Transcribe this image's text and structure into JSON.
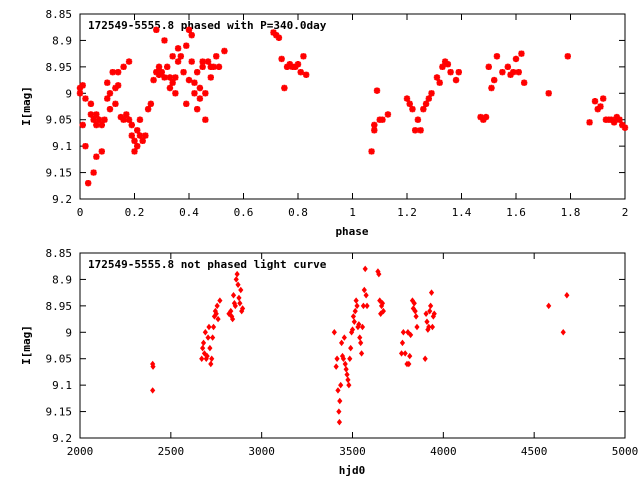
{
  "chart_data": [
    {
      "type": "scatter",
      "title": "172549-5555.8 phased with P=340.0day",
      "xlabel": "phase",
      "ylabel": "I[mag]",
      "xlim": [
        0,
        2
      ],
      "ylim": [
        9.2,
        8.85
      ],
      "y_inverted": true,
      "x_ticks": [
        "0",
        "0.2",
        "0.4",
        "0.6",
        "0.8",
        "1",
        "1.2",
        "1.4",
        "1.6",
        "1.8",
        "2"
      ],
      "y_ticks": [
        "8.85",
        "8.9",
        "8.95",
        "9",
        "9.05",
        "9.1",
        "9.15",
        "9.2"
      ],
      "marker_color": "#ff0000",
      "marker": "star",
      "series": [
        {
          "points": [
            [
              0.0,
              8.99
            ],
            [
              0.0,
              9.0
            ],
            [
              0.01,
              8.985
            ],
            [
              0.01,
              9.06
            ],
            [
              0.02,
              9.01
            ],
            [
              0.02,
              9.1
            ],
            [
              0.03,
              9.17
            ],
            [
              0.04,
              9.02
            ],
            [
              0.04,
              9.04
            ],
            [
              0.05,
              9.05
            ],
            [
              0.05,
              9.15
            ],
            [
              0.06,
              9.04
            ],
            [
              0.06,
              9.06
            ],
            [
              0.06,
              9.12
            ],
            [
              0.07,
              9.05
            ],
            [
              0.08,
              9.11
            ],
            [
              0.08,
              9.06
            ],
            [
              0.09,
              9.05
            ],
            [
              0.1,
              9.01
            ],
            [
              0.1,
              8.98
            ],
            [
              0.11,
              9.03
            ],
            [
              0.11,
              9.0
            ],
            [
              0.12,
              8.96
            ],
            [
              0.13,
              9.02
            ],
            [
              0.13,
              8.99
            ],
            [
              0.14,
              8.96
            ],
            [
              0.14,
              8.985
            ],
            [
              0.15,
              9.045
            ],
            [
              0.16,
              9.05
            ],
            [
              0.16,
              8.95
            ],
            [
              0.17,
              9.04
            ],
            [
              0.18,
              9.05
            ],
            [
              0.18,
              8.94
            ],
            [
              0.19,
              9.08
            ],
            [
              0.19,
              9.06
            ],
            [
              0.2,
              9.09
            ],
            [
              0.2,
              9.11
            ],
            [
              0.21,
              9.07
            ],
            [
              0.21,
              9.1
            ],
            [
              0.22,
              9.08
            ],
            [
              0.22,
              9.05
            ],
            [
              0.23,
              9.09
            ],
            [
              0.24,
              9.08
            ],
            [
              0.25,
              9.03
            ],
            [
              0.26,
              9.02
            ],
            [
              0.27,
              8.975
            ],
            [
              0.28,
              8.88
            ],
            [
              0.28,
              8.96
            ],
            [
              0.29,
              8.95
            ],
            [
              0.29,
              8.965
            ],
            [
              0.3,
              8.96
            ],
            [
              0.31,
              8.97
            ],
            [
              0.31,
              8.9
            ],
            [
              0.32,
              8.95
            ],
            [
              0.33,
              8.97
            ],
            [
              0.33,
              8.99
            ],
            [
              0.34,
              8.98
            ],
            [
              0.34,
              8.93
            ],
            [
              0.35,
              9.0
            ],
            [
              0.35,
              8.97
            ],
            [
              0.36,
              8.915
            ],
            [
              0.36,
              8.94
            ],
            [
              0.37,
              8.93
            ],
            [
              0.38,
              8.96
            ],
            [
              0.39,
              8.91
            ],
            [
              0.39,
              9.02
            ],
            [
              0.4,
              8.975
            ],
            [
              0.4,
              8.88
            ],
            [
              0.41,
              8.89
            ],
            [
              0.41,
              8.94
            ],
            [
              0.42,
              8.98
            ],
            [
              0.42,
              9.0
            ],
            [
              0.43,
              9.03
            ],
            [
              0.43,
              8.96
            ],
            [
              0.44,
              8.99
            ],
            [
              0.44,
              9.01
            ],
            [
              0.45,
              8.95
            ],
            [
              0.45,
              8.94
            ],
            [
              0.46,
              9.0
            ],
            [
              0.46,
              9.05
            ],
            [
              0.47,
              8.94
            ],
            [
              0.48,
              8.95
            ],
            [
              0.48,
              8.97
            ],
            [
              0.49,
              8.95
            ],
            [
              0.5,
              8.93
            ],
            [
              0.51,
              8.95
            ],
            [
              0.53,
              8.92
            ],
            [
              0.71,
              8.885
            ],
            [
              0.72,
              8.89
            ],
            [
              0.73,
              8.895
            ],
            [
              0.74,
              8.935
            ],
            [
              0.75,
              8.99
            ],
            [
              0.76,
              8.95
            ],
            [
              0.77,
              8.945
            ],
            [
              0.78,
              8.95
            ],
            [
              0.79,
              8.95
            ],
            [
              0.8,
              8.945
            ],
            [
              0.81,
              8.96
            ],
            [
              0.82,
              8.93
            ],
            [
              0.83,
              8.965
            ],
            [
              1.07,
              9.11
            ],
            [
              1.08,
              9.07
            ],
            [
              1.08,
              9.06
            ],
            [
              1.09,
              8.995
            ],
            [
              1.1,
              9.05
            ],
            [
              1.11,
              9.05
            ],
            [
              1.13,
              9.04
            ],
            [
              1.2,
              9.01
            ],
            [
              1.21,
              9.02
            ],
            [
              1.22,
              9.03
            ],
            [
              1.23,
              9.07
            ],
            [
              1.24,
              9.05
            ],
            [
              1.25,
              9.07
            ],
            [
              1.26,
              9.03
            ],
            [
              1.27,
              9.02
            ],
            [
              1.28,
              9.01
            ],
            [
              1.29,
              9.0
            ],
            [
              1.31,
              8.97
            ],
            [
              1.32,
              8.98
            ],
            [
              1.33,
              8.95
            ],
            [
              1.34,
              8.94
            ],
            [
              1.35,
              8.945
            ],
            [
              1.36,
              8.96
            ],
            [
              1.38,
              8.975
            ],
            [
              1.39,
              8.96
            ],
            [
              1.47,
              9.045
            ],
            [
              1.48,
              9.05
            ],
            [
              1.49,
              9.045
            ],
            [
              1.5,
              8.95
            ],
            [
              1.51,
              8.99
            ],
            [
              1.52,
              8.975
            ],
            [
              1.53,
              8.93
            ],
            [
              1.55,
              8.96
            ],
            [
              1.57,
              8.95
            ],
            [
              1.58,
              8.965
            ],
            [
              1.59,
              8.96
            ],
            [
              1.6,
              8.935
            ],
            [
              1.61,
              8.96
            ],
            [
              1.62,
              8.925
            ],
            [
              1.63,
              8.98
            ],
            [
              1.72,
              9.0
            ],
            [
              1.79,
              8.93
            ],
            [
              1.87,
              9.055
            ],
            [
              1.89,
              9.015
            ],
            [
              1.9,
              9.03
            ],
            [
              1.91,
              9.025
            ],
            [
              1.92,
              9.01
            ],
            [
              1.93,
              9.05
            ],
            [
              1.94,
              9.05
            ],
            [
              1.95,
              9.05
            ],
            [
              1.96,
              9.055
            ],
            [
              1.97,
              9.045
            ],
            [
              1.98,
              9.05
            ],
            [
              1.99,
              9.06
            ],
            [
              2.0,
              9.065
            ]
          ]
        }
      ]
    },
    {
      "type": "scatter",
      "title": "172549-5555.8 not phased light curve",
      "xlabel": "hjd0",
      "ylabel": "I[mag]",
      "xlim": [
        2000,
        5000
      ],
      "ylim": [
        9.2,
        8.85
      ],
      "y_inverted": true,
      "x_ticks": [
        "2000",
        "2500",
        "3000",
        "3500",
        "4000",
        "4500",
        "5000"
      ],
      "y_ticks": [
        "8.85",
        "8.9",
        "8.95",
        "9",
        "9.05",
        "9.1",
        "9.15",
        "9.2"
      ],
      "marker_color": "#ff0000",
      "marker": "diamond",
      "series": [
        {
          "points": [
            [
              2400,
              9.06
            ],
            [
              2402,
              9.065
            ],
            [
              2400,
              9.11
            ],
            [
              2670,
              9.05
            ],
            [
              2675,
              9.03
            ],
            [
              2680,
              9.02
            ],
            [
              2685,
              9.04
            ],
            [
              2690,
              9.0
            ],
            [
              2695,
              9.05
            ],
            [
              2700,
              9.045
            ],
            [
              2705,
              9.01
            ],
            [
              2710,
              8.99
            ],
            [
              2715,
              9.03
            ],
            [
              2720,
              9.06
            ],
            [
              2725,
              9.05
            ],
            [
              2730,
              9.01
            ],
            [
              2735,
              8.99
            ],
            [
              2740,
              8.97
            ],
            [
              2745,
              8.96
            ],
            [
              2750,
              8.965
            ],
            [
              2755,
              8.95
            ],
            [
              2760,
              8.975
            ],
            [
              2770,
              8.94
            ],
            [
              2820,
              8.965
            ],
            [
              2830,
              8.96
            ],
            [
              2835,
              8.97
            ],
            [
              2840,
              8.975
            ],
            [
              2845,
              8.93
            ],
            [
              2850,
              8.945
            ],
            [
              2855,
              8.95
            ],
            [
              2860,
              8.9
            ],
            [
              2865,
              8.89
            ],
            [
              2870,
              8.91
            ],
            [
              2875,
              8.935
            ],
            [
              2880,
              8.945
            ],
            [
              2885,
              8.92
            ],
            [
              2890,
              8.96
            ],
            [
              2895,
              8.955
            ],
            [
              3400,
              9.0
            ],
            [
              3410,
              9.065
            ],
            [
              3415,
              9.05
            ],
            [
              3420,
              9.11
            ],
            [
              3425,
              9.15
            ],
            [
              3428,
              9.17
            ],
            [
              3430,
              9.13
            ],
            [
              3435,
              9.1
            ],
            [
              3440,
              9.02
            ],
            [
              3445,
              9.045
            ],
            [
              3450,
              9.05
            ],
            [
              3455,
              9.01
            ],
            [
              3460,
              9.06
            ],
            [
              3465,
              9.07
            ],
            [
              3470,
              9.08
            ],
            [
              3475,
              9.09
            ],
            [
              3480,
              9.1
            ],
            [
              3485,
              9.05
            ],
            [
              3490,
              9.03
            ],
            [
              3495,
              9.0
            ],
            [
              3500,
              8.995
            ],
            [
              3505,
              8.97
            ],
            [
              3510,
              8.98
            ],
            [
              3515,
              8.96
            ],
            [
              3520,
              8.94
            ],
            [
              3525,
              8.95
            ],
            [
              3530,
              8.99
            ],
            [
              3535,
              8.985
            ],
            [
              3540,
              9.01
            ],
            [
              3545,
              9.02
            ],
            [
              3550,
              9.04
            ],
            [
              3555,
              8.99
            ],
            [
              3560,
              8.95
            ],
            [
              3565,
              8.92
            ],
            [
              3570,
              8.88
            ],
            [
              3575,
              8.93
            ],
            [
              3580,
              8.95
            ],
            [
              3640,
              8.885
            ],
            [
              3645,
              8.89
            ],
            [
              3650,
              8.94
            ],
            [
              3655,
              8.965
            ],
            [
              3660,
              8.95
            ],
            [
              3665,
              8.945
            ],
            [
              3670,
              8.96
            ],
            [
              3770,
              9.04
            ],
            [
              3775,
              9.02
            ],
            [
              3780,
              9.0
            ],
            [
              3790,
              9.04
            ],
            [
              3800,
              9.06
            ],
            [
              3805,
              9.0
            ],
            [
              3810,
              9.06
            ],
            [
              3815,
              9.045
            ],
            [
              3820,
              9.005
            ],
            [
              3830,
              8.94
            ],
            [
              3835,
              8.955
            ],
            [
              3840,
              8.945
            ],
            [
              3845,
              8.96
            ],
            [
              3850,
              8.97
            ],
            [
              3855,
              8.99
            ],
            [
              3900,
              9.05
            ],
            [
              3905,
              8.965
            ],
            [
              3910,
              8.98
            ],
            [
              3915,
              8.995
            ],
            [
              3920,
              8.99
            ],
            [
              3925,
              8.96
            ],
            [
              3930,
              8.95
            ],
            [
              3935,
              8.925
            ],
            [
              3940,
              8.99
            ],
            [
              3945,
              8.97
            ],
            [
              3950,
              8.965
            ],
            [
              4580,
              8.95
            ],
            [
              4660,
              9.0
            ],
            [
              4680,
              8.93
            ]
          ]
        }
      ]
    }
  ]
}
